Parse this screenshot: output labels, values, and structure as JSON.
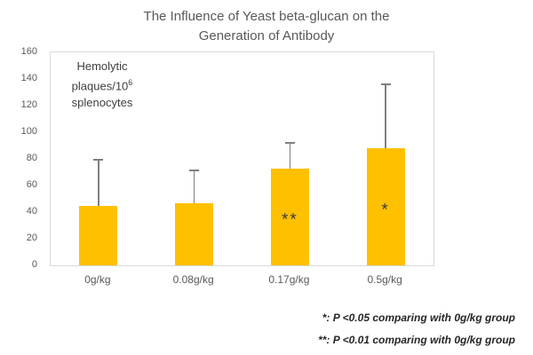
{
  "chart_data": {
    "type": "bar",
    "title": "The Influence of Yeast beta-glucan on the Generation of Antibody",
    "categories": [
      "0g/kg",
      "0.08g/kg",
      "0.17g/kg",
      "0.5g/kg"
    ],
    "values": [
      45,
      47,
      73,
      88
    ],
    "error_plus": [
      35,
      25,
      20,
      49
    ],
    "significance": [
      "",
      "",
      "**",
      "*"
    ],
    "ylabel_annotation": "Hemolytic plaques/10⁶ splenocytes",
    "ylim": [
      0,
      160
    ],
    "yticks": [
      0,
      20,
      40,
      60,
      80,
      100,
      120,
      140,
      160
    ],
    "grid": false,
    "legend_position": "none",
    "bar_color": "#FFC000",
    "error_color": "#7F7F7F"
  },
  "annotation": {
    "line1": "Hemolytic",
    "line2_base": "plaques/10",
    "line2_sup": "6",
    "line3": "splenocytes"
  },
  "footnotes": {
    "line1": "*: P <0.05 comparing with 0g/kg group",
    "line2": "**: P <0.01 comparing with 0g/kg group"
  },
  "colors": {
    "title_text": "#595959",
    "axis_text": "#595959",
    "plot_border": "#D9D9D9",
    "bar_fill": "#FFC000",
    "error_bar": "#7F7F7F",
    "footnote_text": "#262626"
  }
}
